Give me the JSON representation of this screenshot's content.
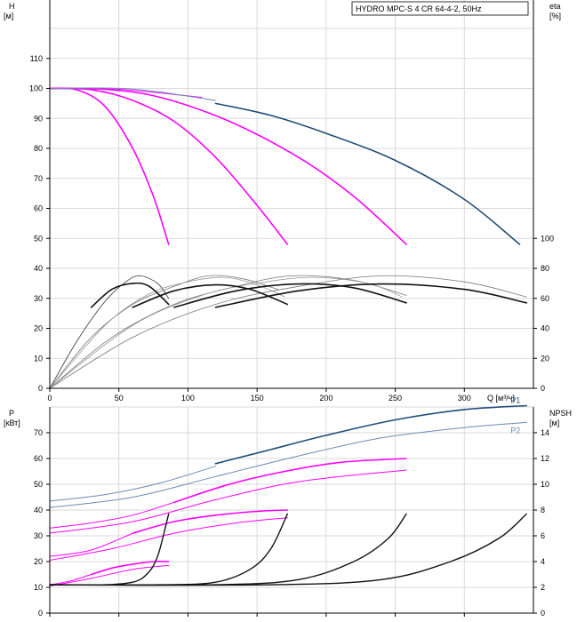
{
  "chart_data": [
    {
      "type": "line",
      "title": "HYDRO MPC-S 4 CR 64-4-2, 50Hz",
      "ylabel": "H",
      "ylabel_unit": "[м]",
      "y2label": "eta",
      "y2label_unit": "[%]",
      "xlabel": "Q",
      "xlabel_unit": "[м³/ч]",
      "xlim": [
        0,
        350
      ],
      "ylim": [
        0,
        120
      ],
      "y2lim": [
        0,
        120
      ],
      "x_ticks": [
        0,
        50,
        100,
        150,
        200,
        250,
        300
      ],
      "y_ticks": [
        0,
        10,
        20,
        30,
        40,
        50,
        60,
        70,
        80,
        90,
        100,
        110
      ],
      "y2_ticks": [
        {
          "label": "0",
          "value": 0
        },
        {
          "label": "20",
          "value": 10
        },
        {
          "label": "40",
          "value": 20
        },
        {
          "label": "60",
          "value": 30
        },
        {
          "label": "80",
          "value": 40
        },
        {
          "label": "100",
          "value": 50
        }
      ],
      "grid": true,
      "series": [
        {
          "color": "#ff00ff",
          "width": 1.6,
          "points": [
            [
              0,
              100
            ],
            [
              20,
              99.5
            ],
            [
              40,
              94
            ],
            [
              60,
              80
            ],
            [
              75,
              64
            ],
            [
              86,
              48
            ]
          ]
        },
        {
          "color": "#ff00ff",
          "width": 1.6,
          "points": [
            [
              0,
              100
            ],
            [
              30,
              99.6
            ],
            [
              60,
              96
            ],
            [
              90,
              89
            ],
            [
              120,
              77
            ],
            [
              150,
              61
            ],
            [
              172,
              48
            ]
          ]
        },
        {
          "color": "#ff00ff",
          "width": 1.6,
          "points": [
            [
              0,
              100
            ],
            [
              40,
              99.7
            ],
            [
              80,
              97
            ],
            [
              130,
              89
            ],
            [
              180,
              77
            ],
            [
              220,
              64
            ],
            [
              258,
              48
            ]
          ]
        },
        {
          "color": "#ff00ff",
          "width": 1,
          "points": [
            [
              0,
              100
            ],
            [
              50,
              99.7
            ],
            [
              110,
              97
            ]
          ]
        },
        {
          "color": "#6b8bb3",
          "width": 1,
          "points": [
            [
              0,
              100
            ],
            [
              60,
              99.8
            ],
            [
              120,
              96
            ]
          ]
        },
        {
          "color": "#1f4e79",
          "width": 1.6,
          "points": [
            [
              120,
              95
            ],
            [
              160,
              91
            ],
            [
              200,
              85
            ],
            [
              250,
              76
            ],
            [
              300,
              63
            ],
            [
              340,
              48
            ]
          ]
        },
        {
          "color": "#333333",
          "width": 0.8,
          "points": [
            [
              0,
              0
            ],
            [
              20,
              16
            ],
            [
              40,
              29
            ],
            [
              55,
              35.5
            ],
            [
              65,
              37.5
            ],
            [
              78,
              35
            ],
            [
              86,
              30
            ]
          ]
        },
        {
          "color": "#777777",
          "width": 0.8,
          "points": [
            [
              0,
              0
            ],
            [
              30,
              17
            ],
            [
              60,
              28
            ],
            [
              90,
              34
            ],
            [
              115,
              37.5
            ],
            [
              140,
              36.5
            ],
            [
              165,
              33
            ]
          ]
        },
        {
          "color": "#777777",
          "width": 0.8,
          "points": [
            [
              0,
              0
            ],
            [
              45,
              17
            ],
            [
              90,
              28
            ],
            [
              135,
              34
            ],
            [
              175,
              37.5
            ],
            [
              220,
              36
            ],
            [
              258,
              31
            ]
          ]
        },
        {
          "color": "#777777",
          "width": 0.8,
          "points": [
            [
              0,
              0
            ],
            [
              60,
              17
            ],
            [
              120,
              28
            ],
            [
              180,
              34
            ],
            [
              240,
              37.5
            ],
            [
              300,
              35.5
            ],
            [
              345,
              30.5
            ]
          ]
        },
        {
          "color": "#999999",
          "width": 0.8,
          "points": [
            [
              0,
              0
            ],
            [
              40,
              21
            ],
            [
              70,
              31
            ],
            [
              95,
              35
            ],
            [
              125,
              37
            ],
            [
              150,
              34.5
            ],
            [
              170,
              30.5
            ]
          ]
        },
        {
          "color": "#999999",
          "width": 0.8,
          "points": [
            [
              0,
              0
            ],
            [
              60,
              21
            ],
            [
              110,
              31
            ],
            [
              150,
              35
            ],
            [
              190,
              37
            ],
            [
              230,
              35
            ],
            [
              255,
              30.5
            ]
          ]
        },
        {
          "color": "#111111",
          "width": 1.6,
          "points": [
            [
              30,
              27
            ],
            [
              45,
              33
            ],
            [
              60,
              35
            ],
            [
              72,
              34
            ],
            [
              86,
              28
            ]
          ]
        },
        {
          "color": "#111111",
          "width": 1.6,
          "points": [
            [
              60,
              27
            ],
            [
              90,
              32.5
            ],
            [
              120,
              34.5
            ],
            [
              145,
              33
            ],
            [
              172,
              28
            ]
          ]
        },
        {
          "color": "#111111",
          "width": 1.6,
          "points": [
            [
              90,
              27
            ],
            [
              135,
              32.5
            ],
            [
              180,
              34.8
            ],
            [
              220,
              33.5
            ],
            [
              258,
              28.5
            ]
          ]
        },
        {
          "color": "#111111",
          "width": 1.6,
          "points": [
            [
              120,
              27
            ],
            [
              180,
              32.5
            ],
            [
              240,
              34.8
            ],
            [
              300,
              33
            ],
            [
              345,
              28.5
            ]
          ]
        }
      ]
    },
    {
      "type": "line",
      "ylabel": "P",
      "ylabel_unit": "[кВт]",
      "y2label": "NPSH",
      "y2label_unit": "[м]",
      "xlim": [
        0,
        350
      ],
      "ylim": [
        0,
        80
      ],
      "y2lim": [
        0,
        80
      ],
      "y_ticks": [
        0,
        10,
        20,
        30,
        40,
        50,
        60,
        70
      ],
      "y2_ticks": [
        {
          "label": "0",
          "value": 0
        },
        {
          "label": "2",
          "value": 10
        },
        {
          "label": "4",
          "value": 20
        },
        {
          "label": "6",
          "value": 30
        },
        {
          "label": "8",
          "value": 40
        },
        {
          "label": "10",
          "value": 50
        },
        {
          "label": "12",
          "value": 60
        },
        {
          "label": "14",
          "value": 70
        }
      ],
      "grid": true,
      "series": [
        {
          "name": "P1",
          "color": "#1f4e79",
          "width": 1.6,
          "points": [
            [
              120,
              58
            ],
            [
              160,
              63.5
            ],
            [
              200,
              69
            ],
            [
              250,
              75
            ],
            [
              300,
              79
            ],
            [
              345,
              80.5
            ]
          ]
        },
        {
          "color": "#6b8bb3",
          "width": 1,
          "points": [
            [
              0,
              43.5
            ],
            [
              40,
              46
            ],
            [
              80,
              50.5
            ],
            [
              120,
              57
            ]
          ]
        },
        {
          "name": "P2",
          "color": "#6b8bb3",
          "width": 1,
          "points": [
            [
              0,
              41
            ],
            [
              60,
              45
            ],
            [
              120,
              53
            ],
            [
              180,
              61
            ],
            [
              240,
              68
            ],
            [
              300,
              72
            ],
            [
              345,
              74
            ]
          ]
        },
        {
          "color": "#ff00ff",
          "width": 1.6,
          "points": [
            [
              90,
              43
            ],
            [
              130,
              50
            ],
            [
              170,
              55
            ],
            [
              210,
              58.5
            ],
            [
              258,
              60
            ]
          ]
        },
        {
          "color": "#ff00ff",
          "width": 1,
          "points": [
            [
              0,
              33
            ],
            [
              30,
              35
            ],
            [
              60,
              38
            ],
            [
              90,
              43
            ]
          ]
        },
        {
          "color": "#ff00ff",
          "width": 1,
          "points": [
            [
              0,
              31
            ],
            [
              60,
              35.5
            ],
            [
              120,
              44
            ],
            [
              180,
              51
            ],
            [
              258,
              55.5
            ]
          ]
        },
        {
          "color": "#ff00ff",
          "width": 1.6,
          "points": [
            [
              60,
              31
            ],
            [
              90,
              35.5
            ],
            [
              120,
              38
            ],
            [
              150,
              39.5
            ],
            [
              172,
              40
            ]
          ]
        },
        {
          "color": "#ff00ff",
          "width": 1,
          "points": [
            [
              0,
              22
            ],
            [
              30,
              24.5
            ],
            [
              60,
              31
            ]
          ]
        },
        {
          "color": "#ff00ff",
          "width": 1,
          "points": [
            [
              0,
              20.5
            ],
            [
              45,
              25
            ],
            [
              90,
              31
            ],
            [
              135,
              35
            ],
            [
              172,
              37
            ]
          ]
        },
        {
          "color": "#ff00ff",
          "width": 1.6,
          "points": [
            [
              30,
              15
            ],
            [
              45,
              17.5
            ],
            [
              60,
              19
            ],
            [
              75,
              20
            ],
            [
              86,
              20
            ]
          ]
        },
        {
          "color": "#ff00ff",
          "width": 1,
          "points": [
            [
              0,
              11
            ],
            [
              15,
              12.5
            ],
            [
              30,
              15
            ]
          ]
        },
        {
          "color": "#ff00ff",
          "width": 1,
          "points": [
            [
              0,
              10.5
            ],
            [
              30,
              13.5
            ],
            [
              60,
              17
            ],
            [
              86,
              18.5
            ]
          ]
        },
        {
          "color": "#111111",
          "width": 1.4,
          "points": [
            [
              0,
              11
            ],
            [
              40,
              11
            ],
            [
              60,
              12
            ],
            [
              70,
              15
            ],
            [
              78,
              22
            ],
            [
              86,
              38.5
            ]
          ]
        },
        {
          "color": "#111111",
          "width": 1.4,
          "points": [
            [
              0,
              11
            ],
            [
              80,
              11
            ],
            [
              120,
              12
            ],
            [
              145,
              17
            ],
            [
              160,
              25
            ],
            [
              172,
              38.5
            ]
          ]
        },
        {
          "color": "#111111",
          "width": 1.4,
          "points": [
            [
              0,
              11
            ],
            [
              120,
              11
            ],
            [
              180,
              13
            ],
            [
              220,
              20
            ],
            [
              245,
              29
            ],
            [
              258,
              38.5
            ]
          ]
        },
        {
          "color": "#111111",
          "width": 1.4,
          "points": [
            [
              0,
              11
            ],
            [
              160,
              11
            ],
            [
              240,
              13
            ],
            [
              290,
              20
            ],
            [
              325,
              29
            ],
            [
              345,
              38.5
            ]
          ]
        }
      ]
    }
  ]
}
